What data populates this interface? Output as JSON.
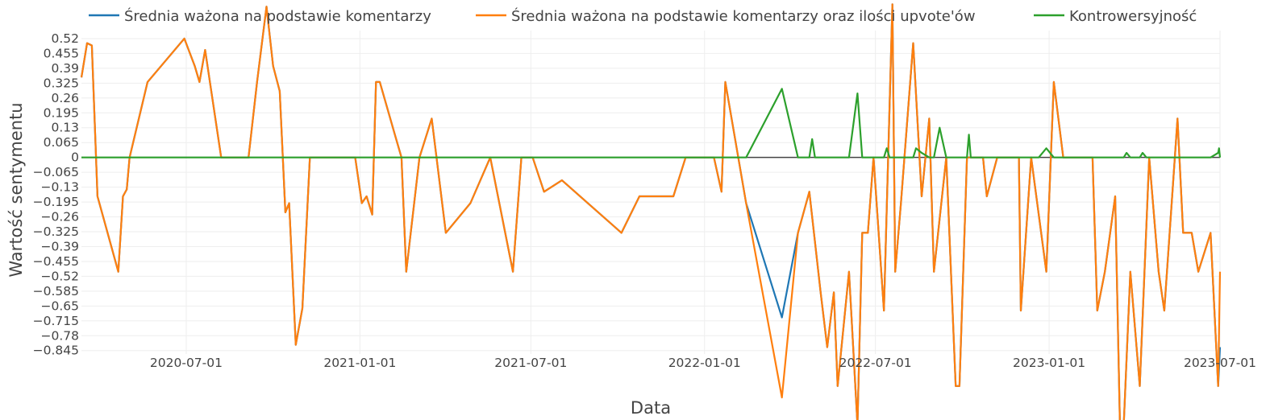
{
  "chart_data": {
    "type": "line",
    "xlabel": "Data",
    "ylabel": "Wartość sentymentu",
    "xlim": [
      "2020-03-12",
      "2023-07-01"
    ],
    "ylim": [
      -0.86,
      0.555
    ],
    "x_ticks": [
      "2020-07-01",
      "2021-01-01",
      "2021-07-01",
      "2022-01-01",
      "2022-07-01",
      "2023-01-01",
      "2023-07-01"
    ],
    "y_ticks": [
      "0.52",
      "0.455",
      "0.39",
      "0.325",
      "0.26",
      "0.195",
      "0.13",
      "0.065",
      "0",
      "−0.065",
      "−0.13",
      "−0.195",
      "−0.26",
      "−0.325",
      "−0.39",
      "−0.455",
      "−0.52",
      "−0.585",
      "−0.65",
      "−0.715",
      "−0.78",
      "−0.845"
    ],
    "grid": true,
    "legend_position": "top",
    "colors": {
      "blue": "#1f77b4",
      "orange": "#ff7f0e",
      "green": "#2ca02c"
    },
    "series": [
      {
        "name": "Średnia ważona na podstawie komentarzy",
        "color": "#1f77b4",
        "points": [
          [
            "2020-03-12",
            0.35
          ],
          [
            "2020-03-18",
            0.5
          ],
          [
            "2020-03-23",
            0.49
          ],
          [
            "2020-03-29",
            -0.17
          ],
          [
            "2020-04-20",
            -0.5
          ],
          [
            "2020-04-25",
            -0.17
          ],
          [
            "2020-04-29",
            -0.14
          ],
          [
            "2020-05-02",
            0
          ],
          [
            "2020-05-21",
            0.33
          ],
          [
            "2020-06-29",
            0.52
          ],
          [
            "2020-07-10",
            0.4
          ],
          [
            "2020-07-15",
            0.33
          ],
          [
            "2020-07-21",
            0.47
          ],
          [
            "2020-08-07",
            0
          ],
          [
            "2020-08-24",
            0
          ],
          [
            "2020-08-29",
            0
          ],
          [
            "2020-09-05",
            0
          ],
          [
            "2020-09-14",
            0.33
          ],
          [
            "2020-09-24",
            0.66
          ],
          [
            "2020-10-01",
            0.4
          ],
          [
            "2020-10-08",
            0.29
          ],
          [
            "2020-10-14",
            -0.24
          ],
          [
            "2020-10-18",
            -0.2
          ],
          [
            "2020-10-25",
            -0.82
          ],
          [
            "2020-11-01",
            -0.66
          ],
          [
            "2020-11-09",
            0
          ],
          [
            "2020-11-29",
            0
          ],
          [
            "2020-12-27",
            0
          ],
          [
            "2021-01-03",
            -0.2
          ],
          [
            "2021-01-08",
            -0.17
          ],
          [
            "2021-01-14",
            -0.25
          ],
          [
            "2021-01-18",
            0.33
          ],
          [
            "2021-01-22",
            0.33
          ],
          [
            "2021-02-07",
            0.1
          ],
          [
            "2021-02-14",
            0
          ],
          [
            "2021-02-19",
            -0.5
          ],
          [
            "2021-03-05",
            0
          ],
          [
            "2021-03-18",
            0.17
          ],
          [
            "2021-04-02",
            -0.33
          ],
          [
            "2021-04-28",
            -0.2
          ],
          [
            "2021-05-19",
            0
          ],
          [
            "2021-06-12",
            -0.5
          ],
          [
            "2021-06-21",
            0
          ],
          [
            "2021-07-03",
            0
          ],
          [
            "2021-07-15",
            -0.15
          ],
          [
            "2021-08-03",
            -0.1
          ],
          [
            "2021-10-05",
            -0.33
          ],
          [
            "2021-10-24",
            -0.17
          ],
          [
            "2021-11-29",
            -0.17
          ],
          [
            "2021-12-12",
            0
          ],
          [
            "2022-01-02",
            0
          ],
          [
            "2022-01-11",
            0
          ],
          [
            "2022-01-19",
            -0.15
          ],
          [
            "2022-01-23",
            0.33
          ],
          [
            "2022-02-14",
            -0.2
          ],
          [
            "2022-03-24",
            -0.7
          ],
          [
            "2022-04-10",
            -0.33
          ],
          [
            "2022-04-22",
            -0.15
          ],
          [
            "2022-05-04",
            -0.59
          ],
          [
            "2022-05-11",
            -0.83
          ],
          [
            "2022-05-18",
            -0.59
          ],
          [
            "2022-05-22",
            -1.0
          ],
          [
            "2022-06-03",
            -0.5
          ],
          [
            "2022-06-12",
            -1.17
          ],
          [
            "2022-06-17",
            -0.33
          ],
          [
            "2022-06-23",
            -0.33
          ],
          [
            "2022-06-29",
            0
          ],
          [
            "2022-07-10",
            -0.67
          ],
          [
            "2022-07-19",
            0.67
          ],
          [
            "2022-07-22",
            -0.5
          ],
          [
            "2022-07-28",
            -0.2
          ],
          [
            "2022-08-10",
            0.5
          ],
          [
            "2022-08-19",
            -0.17
          ],
          [
            "2022-08-27",
            0.17
          ],
          [
            "2022-09-01",
            -0.5
          ],
          [
            "2022-09-14",
            0
          ],
          [
            "2022-09-24",
            -1.0
          ],
          [
            "2022-09-28",
            -1.0
          ],
          [
            "2022-10-06",
            0
          ],
          [
            "2022-10-23",
            0
          ],
          [
            "2022-10-27",
            -0.17
          ],
          [
            "2022-11-07",
            0
          ],
          [
            "2022-11-18",
            0
          ],
          [
            "2022-11-30",
            0
          ],
          [
            "2022-12-02",
            -0.67
          ],
          [
            "2022-12-13",
            0
          ],
          [
            "2022-12-29",
            -0.5
          ],
          [
            "2023-01-06",
            0.33
          ],
          [
            "2023-01-16",
            0
          ],
          [
            "2023-02-03",
            0
          ],
          [
            "2023-02-08",
            0
          ],
          [
            "2023-02-16",
            0
          ],
          [
            "2023-02-21",
            -0.67
          ],
          [
            "2023-03-01",
            -0.5
          ],
          [
            "2023-03-12",
            -0.17
          ],
          [
            "2023-03-17",
            -1.17
          ],
          [
            "2023-03-21",
            -1.17
          ],
          [
            "2023-03-28",
            -0.5
          ],
          [
            "2023-04-07",
            -1.0
          ],
          [
            "2023-04-17",
            0
          ],
          [
            "2023-04-27",
            -0.5
          ],
          [
            "2023-05-03",
            -0.67
          ],
          [
            "2023-05-17",
            0.17
          ],
          [
            "2023-05-23",
            -0.33
          ],
          [
            "2023-06-01",
            -0.33
          ],
          [
            "2023-06-08",
            -0.5
          ],
          [
            "2023-06-21",
            -0.33
          ],
          [
            "2023-06-29",
            -1.0
          ],
          [
            "2023-07-01",
            -0.83
          ]
        ]
      },
      {
        "name": "Średnia ważona na podstawie komentarzy oraz ilości upvote'ów",
        "color": "#ff7f0e",
        "points": [
          [
            "2020-03-12",
            0.35
          ],
          [
            "2020-03-18",
            0.5
          ],
          [
            "2020-03-23",
            0.49
          ],
          [
            "2020-03-29",
            -0.17
          ],
          [
            "2020-04-20",
            -0.5
          ],
          [
            "2020-04-25",
            -0.17
          ],
          [
            "2020-04-29",
            -0.14
          ],
          [
            "2020-05-02",
            0
          ],
          [
            "2020-05-21",
            0.33
          ],
          [
            "2020-06-29",
            0.52
          ],
          [
            "2020-07-10",
            0.4
          ],
          [
            "2020-07-15",
            0.33
          ],
          [
            "2020-07-21",
            0.47
          ],
          [
            "2020-08-07",
            0
          ],
          [
            "2020-08-24",
            0
          ],
          [
            "2020-08-29",
            0
          ],
          [
            "2020-09-05",
            0
          ],
          [
            "2020-09-14",
            0.33
          ],
          [
            "2020-09-24",
            0.66
          ],
          [
            "2020-10-01",
            0.4
          ],
          [
            "2020-10-08",
            0.29
          ],
          [
            "2020-10-14",
            -0.24
          ],
          [
            "2020-10-18",
            -0.2
          ],
          [
            "2020-10-25",
            -0.82
          ],
          [
            "2020-11-01",
            -0.66
          ],
          [
            "2020-11-09",
            0
          ],
          [
            "2020-11-29",
            0
          ],
          [
            "2020-12-27",
            0
          ],
          [
            "2021-01-03",
            -0.2
          ],
          [
            "2021-01-08",
            -0.17
          ],
          [
            "2021-01-14",
            -0.25
          ],
          [
            "2021-01-18",
            0.33
          ],
          [
            "2021-01-22",
            0.33
          ],
          [
            "2021-02-07",
            0.1
          ],
          [
            "2021-02-14",
            0
          ],
          [
            "2021-02-19",
            -0.5
          ],
          [
            "2021-03-05",
            0
          ],
          [
            "2021-03-18",
            0.17
          ],
          [
            "2021-04-02",
            -0.33
          ],
          [
            "2021-04-28",
            -0.2
          ],
          [
            "2021-05-19",
            0
          ],
          [
            "2021-06-12",
            -0.5
          ],
          [
            "2021-06-21",
            0
          ],
          [
            "2021-07-03",
            0
          ],
          [
            "2021-07-15",
            -0.15
          ],
          [
            "2021-08-03",
            -0.1
          ],
          [
            "2021-10-05",
            -0.33
          ],
          [
            "2021-10-24",
            -0.17
          ],
          [
            "2021-11-29",
            -0.17
          ],
          [
            "2021-12-12",
            0
          ],
          [
            "2022-01-02",
            0
          ],
          [
            "2022-01-11",
            0
          ],
          [
            "2022-01-19",
            -0.15
          ],
          [
            "2022-01-23",
            0.33
          ],
          [
            "2022-02-14",
            -0.2
          ],
          [
            "2022-03-24",
            -1.05
          ],
          [
            "2022-04-10",
            -0.33
          ],
          [
            "2022-04-22",
            -0.15
          ],
          [
            "2022-05-04",
            -0.59
          ],
          [
            "2022-05-11",
            -0.83
          ],
          [
            "2022-05-18",
            -0.59
          ],
          [
            "2022-05-22",
            -1.0
          ],
          [
            "2022-06-03",
            -0.5
          ],
          [
            "2022-06-12",
            -1.17
          ],
          [
            "2022-06-17",
            -0.33
          ],
          [
            "2022-06-23",
            -0.33
          ],
          [
            "2022-06-29",
            0
          ],
          [
            "2022-07-10",
            -0.67
          ],
          [
            "2022-07-19",
            0.67
          ],
          [
            "2022-07-22",
            -0.5
          ],
          [
            "2022-07-28",
            -0.2
          ],
          [
            "2022-08-10",
            0.5
          ],
          [
            "2022-08-19",
            -0.17
          ],
          [
            "2022-08-27",
            0.17
          ],
          [
            "2022-09-01",
            -0.5
          ],
          [
            "2022-09-14",
            0
          ],
          [
            "2022-09-24",
            -1.0
          ],
          [
            "2022-09-28",
            -1.0
          ],
          [
            "2022-10-06",
            0
          ],
          [
            "2022-10-23",
            0
          ],
          [
            "2022-10-27",
            -0.17
          ],
          [
            "2022-11-07",
            0
          ],
          [
            "2022-11-18",
            0
          ],
          [
            "2022-11-30",
            0
          ],
          [
            "2022-12-02",
            -0.67
          ],
          [
            "2022-12-13",
            0
          ],
          [
            "2022-12-29",
            -0.5
          ],
          [
            "2023-01-06",
            0.33
          ],
          [
            "2023-01-16",
            0
          ],
          [
            "2023-02-03",
            0
          ],
          [
            "2023-02-08",
            0
          ],
          [
            "2023-02-16",
            0
          ],
          [
            "2023-02-21",
            -0.67
          ],
          [
            "2023-03-01",
            -0.5
          ],
          [
            "2023-03-12",
            -0.17
          ],
          [
            "2023-03-17",
            -1.17
          ],
          [
            "2023-03-21",
            -1.17
          ],
          [
            "2023-03-28",
            -0.5
          ],
          [
            "2023-04-07",
            -1.0
          ],
          [
            "2023-04-17",
            0
          ],
          [
            "2023-04-27",
            -0.5
          ],
          [
            "2023-05-03",
            -0.67
          ],
          [
            "2023-05-17",
            0.17
          ],
          [
            "2023-05-23",
            -0.33
          ],
          [
            "2023-06-01",
            -0.33
          ],
          [
            "2023-06-08",
            -0.5
          ],
          [
            "2023-06-21",
            -0.33
          ],
          [
            "2023-06-29",
            -1.0
          ],
          [
            "2023-07-01",
            -0.5
          ]
        ]
      },
      {
        "name": "Kontrowersyjność",
        "color": "#2ca02c",
        "points": [
          [
            "2020-03-12",
            0
          ],
          [
            "2022-02-14",
            0
          ],
          [
            "2022-03-24",
            0.3
          ],
          [
            "2022-04-10",
            0
          ],
          [
            "2022-04-22",
            0
          ],
          [
            "2022-04-25",
            0.08
          ],
          [
            "2022-04-28",
            0
          ],
          [
            "2022-06-03",
            0
          ],
          [
            "2022-06-12",
            0.28
          ],
          [
            "2022-06-17",
            0
          ],
          [
            "2022-07-10",
            0
          ],
          [
            "2022-07-13",
            0.04
          ],
          [
            "2022-07-16",
            0
          ],
          [
            "2022-08-10",
            0
          ],
          [
            "2022-08-13",
            0.04
          ],
          [
            "2022-08-19",
            0.02
          ],
          [
            "2022-08-27",
            0
          ],
          [
            "2022-09-01",
            0
          ],
          [
            "2022-09-07",
            0.13
          ],
          [
            "2022-09-14",
            0
          ],
          [
            "2022-10-06",
            0
          ],
          [
            "2022-10-08",
            0.1
          ],
          [
            "2022-10-10",
            0
          ],
          [
            "2022-12-21",
            0
          ],
          [
            "2022-12-29",
            0.04
          ],
          [
            "2023-01-06",
            0
          ],
          [
            "2023-03-21",
            0
          ],
          [
            "2023-03-24",
            0.02
          ],
          [
            "2023-03-28",
            0
          ],
          [
            "2023-04-07",
            0
          ],
          [
            "2023-04-10",
            0.02
          ],
          [
            "2023-04-14",
            0
          ],
          [
            "2023-06-21",
            0
          ],
          [
            "2023-06-29",
            0.02
          ],
          [
            "2023-06-30",
            0.04
          ],
          [
            "2023-07-01",
            0
          ]
        ]
      }
    ]
  }
}
